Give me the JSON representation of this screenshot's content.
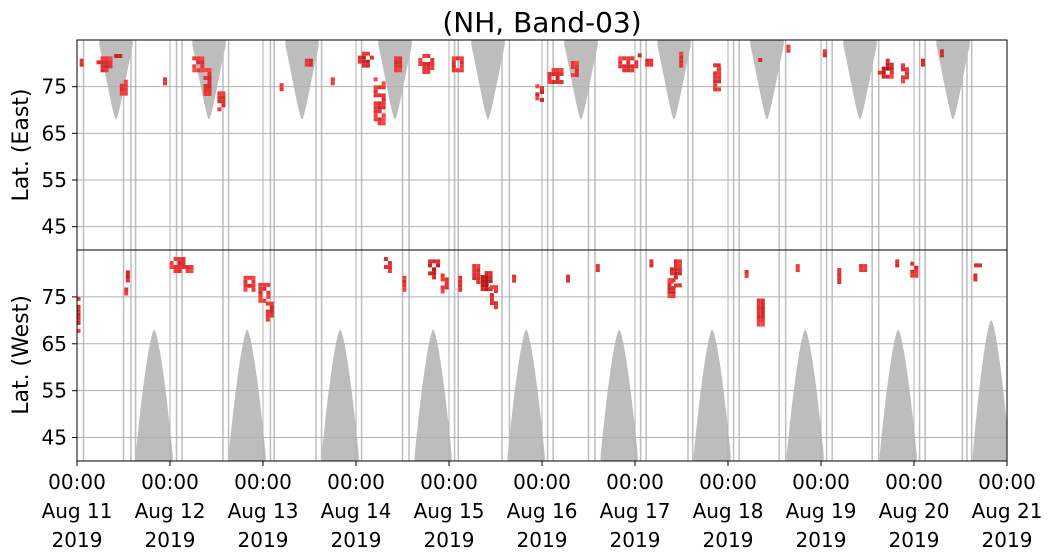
{
  "chart_data": {
    "type": "heatmap",
    "title": "(NH, Band-03)",
    "xlabel": "",
    "ylabel_top": "Lat. (East)",
    "ylabel_bottom": "Lat. (West)",
    "x_range": [
      "2019-08-11 00:00",
      "2019-08-21 00:00"
    ],
    "x_ticks": [
      {
        "time": "00:00",
        "date": "Aug 11",
        "year": "2019"
      },
      {
        "time": "00:00",
        "date": "Aug 12",
        "year": "2019"
      },
      {
        "time": "00:00",
        "date": "Aug 13",
        "year": "2019"
      },
      {
        "time": "00:00",
        "date": "Aug 14",
        "year": "2019"
      },
      {
        "time": "00:00",
        "date": "Aug 15",
        "year": "2019"
      },
      {
        "time": "00:00",
        "date": "Aug 16",
        "year": "2019"
      },
      {
        "time": "00:00",
        "date": "Aug 17",
        "year": "2019"
      },
      {
        "time": "00:00",
        "date": "Aug 18",
        "year": "2019"
      },
      {
        "time": "00:00",
        "date": "Aug 19",
        "year": "2019"
      },
      {
        "time": "00:00",
        "date": "Aug 20",
        "year": "2019"
      },
      {
        "time": "00:00",
        "date": "Aug 21",
        "year": "2019"
      }
    ],
    "y_panels": [
      {
        "name": "East",
        "ylim": [
          40,
          85
        ],
        "ticks": [
          "45",
          "55",
          "65",
          "75"
        ]
      },
      {
        "name": "West",
        "ylim": [
          40,
          85
        ],
        "ticks": [
          "75",
          "65",
          "55",
          "45"
        ]
      }
    ],
    "grid": true,
    "colors": {
      "background_coverage": "#bdbdbd",
      "data_low": "#ff4444",
      "data_high": "#8b0000",
      "grid": "#b0b0b0",
      "divider": "#000000"
    },
    "east_coverage": [
      {
        "center_day": 0.42,
        "half_width_days": 0.18,
        "min_lat": 68
      },
      {
        "center_day": 1.42,
        "half_width_days": 0.18,
        "min_lat": 68
      },
      {
        "center_day": 2.42,
        "half_width_days": 0.18,
        "min_lat": 68
      },
      {
        "center_day": 3.42,
        "half_width_days": 0.18,
        "min_lat": 68
      },
      {
        "center_day": 4.42,
        "half_width_days": 0.18,
        "min_lat": 68
      },
      {
        "center_day": 5.42,
        "half_width_days": 0.18,
        "min_lat": 68
      },
      {
        "center_day": 6.42,
        "half_width_days": 0.18,
        "min_lat": 68
      },
      {
        "center_day": 7.42,
        "half_width_days": 0.18,
        "min_lat": 68
      },
      {
        "center_day": 8.42,
        "half_width_days": 0.18,
        "min_lat": 68
      },
      {
        "center_day": 9.42,
        "half_width_days": 0.18,
        "min_lat": 68
      }
    ],
    "west_coverage": [
      {
        "center_day": 0.83,
        "half_width_days": 0.2,
        "max_lat": 68
      },
      {
        "center_day": 1.83,
        "half_width_days": 0.2,
        "max_lat": 68
      },
      {
        "center_day": 2.83,
        "half_width_days": 0.2,
        "max_lat": 68
      },
      {
        "center_day": 3.83,
        "half_width_days": 0.2,
        "max_lat": 68
      },
      {
        "center_day": 4.83,
        "half_width_days": 0.2,
        "max_lat": 68
      },
      {
        "center_day": 5.83,
        "half_width_days": 0.2,
        "max_lat": 68
      },
      {
        "center_day": 6.83,
        "half_width_days": 0.2,
        "max_lat": 68
      },
      {
        "center_day": 7.83,
        "half_width_days": 0.2,
        "max_lat": 68
      },
      {
        "center_day": 8.83,
        "half_width_days": 0.2,
        "max_lat": 68
      },
      {
        "center_day": 9.83,
        "half_width_days": 0.2,
        "max_lat": 70
      }
    ],
    "scan_lines_day": [
      0.07,
      0.5,
      0.58,
      0.63,
      1.07,
      1.13,
      1.57,
      1.63,
      2.08,
      2.12,
      2.57,
      2.63,
      3.06,
      3.5,
      3.57,
      4.06,
      4.1,
      4.57,
      4.65,
      5.06,
      5.12,
      5.5,
      5.57,
      6.06,
      6.12,
      6.57,
      6.62,
      7.06,
      7.12,
      7.55,
      7.62,
      8.06,
      8.12,
      8.55,
      8.62,
      9.06,
      9.12,
      9.52,
      9.57,
      9.62
    ],
    "echoes": [
      {
        "day": 0.02,
        "lat": 71,
        "hemi": "West",
        "w_days": 0.05,
        "h_deg": 8,
        "intensity": 0.6
      },
      {
        "day": 0.05,
        "lat": 80,
        "hemi": "East",
        "w_days": 0.04,
        "h_deg": 2,
        "intensity": 0.6
      },
      {
        "day": 0.3,
        "lat": 80,
        "hemi": "East",
        "w_days": 0.18,
        "h_deg": 3,
        "intensity": 0.6
      },
      {
        "day": 0.45,
        "lat": 81,
        "hemi": "East",
        "w_days": 0.1,
        "h_deg": 2,
        "intensity": 0.9
      },
      {
        "day": 0.5,
        "lat": 75,
        "hemi": "East",
        "w_days": 0.08,
        "h_deg": 3,
        "intensity": 0.5
      },
      {
        "day": 0.55,
        "lat": 80,
        "hemi": "West",
        "w_days": 0.05,
        "h_deg": 3,
        "intensity": 0.6
      },
      {
        "day": 0.53,
        "lat": 76,
        "hemi": "West",
        "w_days": 0.04,
        "h_deg": 2,
        "intensity": 0.5
      },
      {
        "day": 0.95,
        "lat": 76,
        "hemi": "East",
        "w_days": 0.05,
        "h_deg": 2,
        "intensity": 0.5
      },
      {
        "day": 1.12,
        "lat": 82,
        "hemi": "West",
        "w_days": 0.25,
        "h_deg": 3,
        "intensity": 0.6
      },
      {
        "day": 1.3,
        "lat": 80,
        "hemi": "East",
        "w_days": 0.12,
        "h_deg": 3,
        "intensity": 0.6
      },
      {
        "day": 1.4,
        "lat": 76,
        "hemi": "East",
        "w_days": 0.08,
        "h_deg": 6,
        "intensity": 0.6
      },
      {
        "day": 1.55,
        "lat": 72,
        "hemi": "East",
        "w_days": 0.08,
        "h_deg": 4,
        "intensity": 0.6
      },
      {
        "day": 1.85,
        "lat": 78,
        "hemi": "West",
        "w_days": 0.12,
        "h_deg": 3,
        "intensity": 0.6
      },
      {
        "day": 2.02,
        "lat": 76,
        "hemi": "West",
        "w_days": 0.14,
        "h_deg": 4,
        "intensity": 0.6
      },
      {
        "day": 2.08,
        "lat": 72,
        "hemi": "West",
        "w_days": 0.1,
        "h_deg": 4,
        "intensity": 0.6
      },
      {
        "day": 2.2,
        "lat": 75,
        "hemi": "East",
        "w_days": 0.03,
        "h_deg": 1.5,
        "intensity": 0.5
      },
      {
        "day": 2.5,
        "lat": 80,
        "hemi": "East",
        "w_days": 0.1,
        "h_deg": 2,
        "intensity": 0.6
      },
      {
        "day": 2.75,
        "lat": 76,
        "hemi": "East",
        "w_days": 0.03,
        "h_deg": 2,
        "intensity": 0.5
      },
      {
        "day": 3.1,
        "lat": 81,
        "hemi": "East",
        "w_days": 0.16,
        "h_deg": 3,
        "intensity": 0.7
      },
      {
        "day": 3.25,
        "lat": 72,
        "hemi": "East",
        "w_days": 0.12,
        "h_deg": 10,
        "intensity": 0.6
      },
      {
        "day": 3.35,
        "lat": 82,
        "hemi": "West",
        "w_days": 0.1,
        "h_deg": 3,
        "intensity": 0.7
      },
      {
        "day": 3.45,
        "lat": 80,
        "hemi": "East",
        "w_days": 0.08,
        "h_deg": 3,
        "intensity": 0.6
      },
      {
        "day": 3.52,
        "lat": 78,
        "hemi": "West",
        "w_days": 0.03,
        "h_deg": 3,
        "intensity": 0.5
      },
      {
        "day": 3.75,
        "lat": 80,
        "hemi": "East",
        "w_days": 0.16,
        "h_deg": 4,
        "intensity": 0.6
      },
      {
        "day": 3.85,
        "lat": 81,
        "hemi": "West",
        "w_days": 0.15,
        "h_deg": 4,
        "intensity": 0.9
      },
      {
        "day": 3.95,
        "lat": 78,
        "hemi": "West",
        "w_days": 0.08,
        "h_deg": 4,
        "intensity": 0.6
      },
      {
        "day": 4.1,
        "lat": 80,
        "hemi": "East",
        "w_days": 0.14,
        "h_deg": 3,
        "intensity": 0.6
      },
      {
        "day": 4.3,
        "lat": 80,
        "hemi": "West",
        "w_days": 0.1,
        "h_deg": 4,
        "intensity": 0.6
      },
      {
        "day": 4.4,
        "lat": 78,
        "hemi": "West",
        "w_days": 0.12,
        "h_deg": 5,
        "intensity": 1.0
      },
      {
        "day": 4.48,
        "lat": 75,
        "hemi": "West",
        "w_days": 0.08,
        "h_deg": 5,
        "intensity": 0.6
      },
      {
        "day": 4.12,
        "lat": 78,
        "hemi": "West",
        "w_days": 0.03,
        "h_deg": 3,
        "intensity": 0.5
      },
      {
        "day": 4.7,
        "lat": 79,
        "hemi": "West",
        "w_days": 0.04,
        "h_deg": 1.5,
        "intensity": 0.5
      },
      {
        "day": 4.95,
        "lat": 74,
        "hemi": "East",
        "w_days": 0.03,
        "h_deg": 3,
        "intensity": 0.5
      },
      {
        "day": 5.0,
        "lat": 73,
        "hemi": "East",
        "w_days": 0.04,
        "h_deg": 6,
        "intensity": 0.6
      },
      {
        "day": 5.15,
        "lat": 77,
        "hemi": "East",
        "w_days": 0.18,
        "h_deg": 4,
        "intensity": 0.6
      },
      {
        "day": 5.35,
        "lat": 79,
        "hemi": "East",
        "w_days": 0.08,
        "h_deg": 3,
        "intensity": 0.6
      },
      {
        "day": 5.6,
        "lat": 81,
        "hemi": "West",
        "w_days": 0.04,
        "h_deg": 2,
        "intensity": 0.6
      },
      {
        "day": 5.28,
        "lat": 79,
        "hemi": "West",
        "w_days": 0.03,
        "h_deg": 1.5,
        "intensity": 0.5
      },
      {
        "day": 5.92,
        "lat": 80,
        "hemi": "East",
        "w_days": 0.2,
        "h_deg": 3,
        "intensity": 0.6
      },
      {
        "day": 6.05,
        "lat": 82,
        "hemi": "East",
        "w_days": 0.04,
        "h_deg": 2,
        "intensity": 0.6
      },
      {
        "day": 6.15,
        "lat": 80,
        "hemi": "East",
        "w_days": 0.08,
        "h_deg": 2,
        "intensity": 0.6
      },
      {
        "day": 6.18,
        "lat": 82,
        "hemi": "West",
        "w_days": 0.05,
        "h_deg": 2,
        "intensity": 0.6
      },
      {
        "day": 6.45,
        "lat": 80,
        "hemi": "West",
        "w_days": 0.15,
        "h_deg": 6,
        "intensity": 0.7
      },
      {
        "day": 6.4,
        "lat": 77,
        "hemi": "West",
        "w_days": 0.1,
        "h_deg": 4,
        "intensity": 0.6
      },
      {
        "day": 6.5,
        "lat": 81,
        "hemi": "East",
        "w_days": 0.05,
        "h_deg": 3,
        "intensity": 0.6
      },
      {
        "day": 6.88,
        "lat": 77,
        "hemi": "East",
        "w_days": 0.08,
        "h_deg": 6,
        "intensity": 0.6
      },
      {
        "day": 6.9,
        "lat": 79,
        "hemi": "East",
        "w_days": 0.04,
        "h_deg": 2,
        "intensity": 0.5
      },
      {
        "day": 7.35,
        "lat": 72,
        "hemi": "West",
        "w_days": 0.08,
        "h_deg": 7,
        "intensity": 0.6
      },
      {
        "day": 7.2,
        "lat": 80,
        "hemi": "West",
        "w_days": 0.03,
        "h_deg": 1.5,
        "intensity": 0.5
      },
      {
        "day": 7.35,
        "lat": 81,
        "hemi": "East",
        "w_days": 0.05,
        "h_deg": 2,
        "intensity": 0.6
      },
      {
        "day": 7.65,
        "lat": 83,
        "hemi": "East",
        "w_days": 0.03,
        "h_deg": 2,
        "intensity": 0.5
      },
      {
        "day": 7.75,
        "lat": 81,
        "hemi": "West",
        "w_days": 0.04,
        "h_deg": 2,
        "intensity": 0.5
      },
      {
        "day": 8.05,
        "lat": 82,
        "hemi": "East",
        "w_days": 0.06,
        "h_deg": 2,
        "intensity": 0.6
      },
      {
        "day": 8.2,
        "lat": 80,
        "hemi": "West",
        "w_days": 0.05,
        "h_deg": 4,
        "intensity": 0.6
      },
      {
        "day": 8.45,
        "lat": 81,
        "hemi": "West",
        "w_days": 0.08,
        "h_deg": 2,
        "intensity": 0.5
      },
      {
        "day": 8.7,
        "lat": 79,
        "hemi": "East",
        "w_days": 0.18,
        "h_deg": 4,
        "intensity": 0.8
      },
      {
        "day": 8.9,
        "lat": 78,
        "hemi": "East",
        "w_days": 0.08,
        "h_deg": 4,
        "intensity": 0.6
      },
      {
        "day": 8.82,
        "lat": 82,
        "hemi": "West",
        "w_days": 0.04,
        "h_deg": 2,
        "intensity": 0.6
      },
      {
        "day": 9.0,
        "lat": 81,
        "hemi": "West",
        "w_days": 0.08,
        "h_deg": 3,
        "intensity": 0.6
      },
      {
        "day": 9.1,
        "lat": 80,
        "hemi": "East",
        "w_days": 0.05,
        "h_deg": 2,
        "intensity": 0.6
      },
      {
        "day": 9.3,
        "lat": 82,
        "hemi": "East",
        "w_days": 0.04,
        "h_deg": 2,
        "intensity": 0.6
      },
      {
        "day": 9.68,
        "lat": 82,
        "hemi": "West",
        "w_days": 0.07,
        "h_deg": 2,
        "intensity": 0.6
      },
      {
        "day": 9.66,
        "lat": 79,
        "hemi": "West",
        "w_days": 0.02,
        "h_deg": 2,
        "intensity": 0.5
      }
    ]
  }
}
